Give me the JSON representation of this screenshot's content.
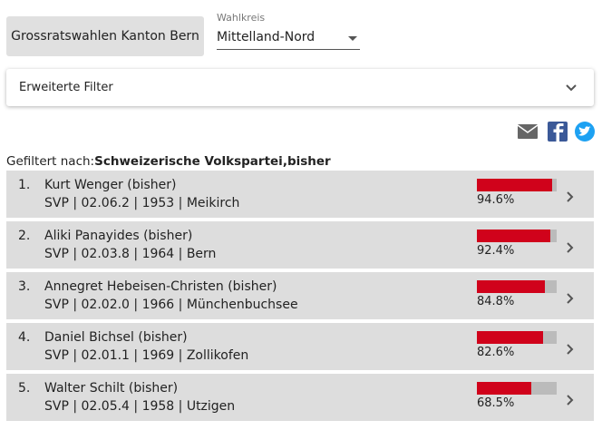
{
  "header": {
    "title": "Grossratswahlen Kanton Bern",
    "select_label": "Wahlkreis",
    "select_value": "Mittelland-Nord"
  },
  "filter": {
    "label": "Erweiterte Filter"
  },
  "filtered": {
    "prefix": "Gefiltert nach:",
    "value": "Schweizerische Volkspartei,bisher"
  },
  "results": {
    "xlim": [
      0,
      100
    ],
    "rows": [
      {
        "rank": "1.",
        "name": "Kurt Wenger (bisher)",
        "details": "SVP | 02.06.2 | 1953 | Meikirch",
        "value": 94.6,
        "value_label": "94.6%"
      },
      {
        "rank": "2.",
        "name": "Aliki Panayides (bisher)",
        "details": "SVP | 02.03.8 | 1964 | Bern",
        "value": 92.4,
        "value_label": "92.4%"
      },
      {
        "rank": "3.",
        "name": "Annegret Hebeisen-Christen (bisher)",
        "details": "SVP | 02.02.0 | 1966 | Münchenbuchsee",
        "value": 84.8,
        "value_label": "84.8%"
      },
      {
        "rank": "4.",
        "name": "Daniel Bichsel (bisher)",
        "details": "SVP | 02.01.1 | 1969 | Zollikofen",
        "value": 82.6,
        "value_label": "82.6%"
      },
      {
        "rank": "5.",
        "name": "Walter Schilt (bisher)",
        "details": "SVP | 02.05.4 | 1958 | Utzigen",
        "value": 68.5,
        "value_label": "68.5%"
      }
    ]
  }
}
